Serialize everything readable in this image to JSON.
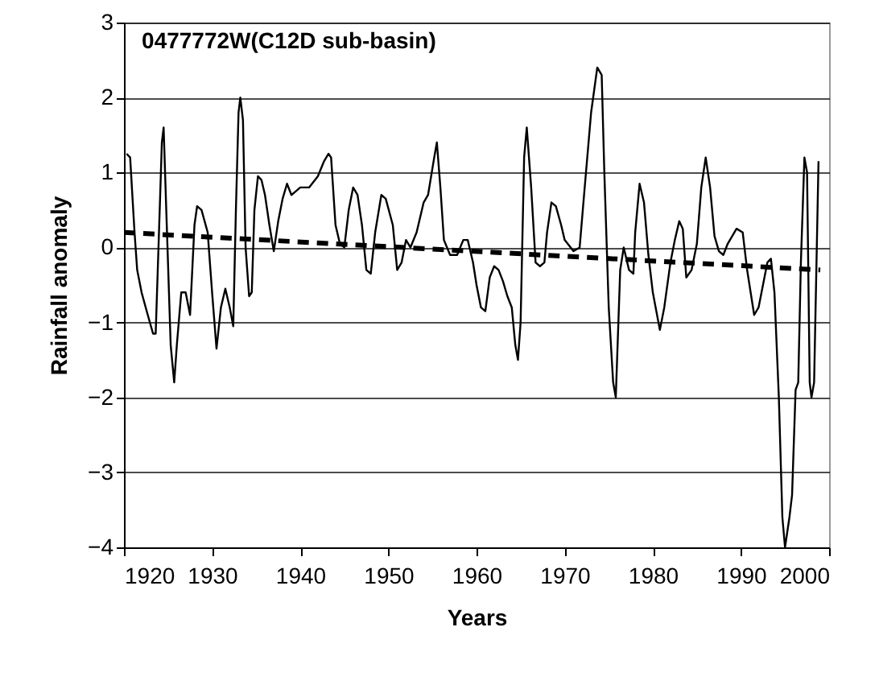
{
  "chart_data": {
    "type": "line",
    "title": "0477772W(C12D sub-basin)",
    "xlabel": "Years",
    "ylabel": "Rainfall anomaly",
    "xlim": [
      1920,
      2000
    ],
    "xticks": [
      1920,
      1930,
      1940,
      1950,
      1960,
      1970,
      1980,
      1990,
      2000
    ],
    "ylim": [
      -4,
      3
    ],
    "yticks": [
      -4,
      -3,
      -2,
      -1,
      0,
      1,
      2,
      3
    ],
    "grid": "y",
    "marker": "none",
    "series": [
      {
        "color": "#000000",
        "line_style": "solid",
        "x": [
          1920.3,
          1920.7,
          1921.2,
          1921.5,
          1922,
          1922.7,
          1923.3,
          1923.6,
          1924,
          1924.3,
          1924.5,
          1924.8,
          1925.3,
          1925.7,
          1926,
          1926.5,
          1927,
          1927.5,
          1928,
          1928.3,
          1928.8,
          1929.5,
          1930,
          1930.5,
          1931,
          1931.5,
          1932,
          1932.4,
          1932.7,
          1933,
          1933.2,
          1933.5,
          1933.8,
          1934.2,
          1934.5,
          1934.8,
          1935.2,
          1935.6,
          1936,
          1936.5,
          1937,
          1937.5,
          1938,
          1938.5,
          1939,
          1939.5,
          1940,
          1941,
          1942,
          1942.7,
          1943.2,
          1943.5,
          1944,
          1944.5,
          1945,
          1945.5,
          1946,
          1946.5,
          1947,
          1947.5,
          1948,
          1948.5,
          1949.2,
          1949.7,
          1950.5,
          1951,
          1951.5,
          1952,
          1952.5,
          1953.2,
          1954,
          1954.5,
          1955.2,
          1955.5,
          1955.9,
          1956.3,
          1957,
          1957.8,
          1958.5,
          1959,
          1959.6,
          1960,
          1960.5,
          1961,
          1961.5,
          1962,
          1962.5,
          1963,
          1963.5,
          1964,
          1964.4,
          1964.7,
          1965,
          1965.4,
          1965.7,
          1966.2,
          1966.7,
          1967.2,
          1967.7,
          1968,
          1968.5,
          1969,
          1969.6,
          1970,
          1971,
          1971.7,
          1972.2,
          1973,
          1973.7,
          1974.2,
          1974.5,
          1975,
          1975.5,
          1975.8,
          1976.3,
          1976.7,
          1977.3,
          1977.8,
          1978,
          1978.5,
          1979,
          1979.5,
          1980,
          1980.8,
          1981.3,
          1982,
          1982.5,
          1983,
          1983.4,
          1983.8,
          1984.4,
          1985,
          1985.5,
          1986,
          1986.5,
          1987,
          1987.5,
          1988,
          1988.5,
          1989.5,
          1990.2,
          1990.7,
          1991.5,
          1992,
          1992.5,
          1993,
          1993.4,
          1993.8,
          1994.3,
          1994.7,
          1995,
          1995.5,
          1995.8,
          1996.2,
          1996.5,
          1996.8,
          1997.2,
          1997.5,
          1997.8,
          1998,
          1998.3,
          1998.8
        ],
        "values": [
          1.25,
          1.2,
          0.2,
          -0.3,
          -0.6,
          -0.9,
          -1.15,
          -1.15,
          0.3,
          1.4,
          1.6,
          0.5,
          -1.3,
          -1.8,
          -1.3,
          -0.6,
          -0.6,
          -0.9,
          0.3,
          0.55,
          0.5,
          0.2,
          -0.6,
          -1.35,
          -0.8,
          -0.55,
          -0.8,
          -1.05,
          0.5,
          1.8,
          2.0,
          1.7,
          0.0,
          -0.65,
          -0.6,
          0.5,
          0.95,
          0.9,
          0.7,
          0.3,
          -0.05,
          0.35,
          0.65,
          0.85,
          0.7,
          0.75,
          0.8,
          0.8,
          0.95,
          1.15,
          1.25,
          1.2,
          0.3,
          0.05,
          0.0,
          0.5,
          0.8,
          0.7,
          0.3,
          -0.3,
          -0.35,
          0.2,
          0.7,
          0.65,
          0.3,
          -0.3,
          -0.2,
          0.1,
          0.0,
          0.2,
          0.6,
          0.7,
          1.2,
          1.4,
          0.8,
          0.1,
          -0.1,
          -0.1,
          0.1,
          0.1,
          -0.2,
          -0.5,
          -0.8,
          -0.85,
          -0.4,
          -0.25,
          -0.3,
          -0.45,
          -0.65,
          -0.8,
          -1.3,
          -1.5,
          -1.0,
          1.2,
          1.6,
          0.8,
          -0.2,
          -0.25,
          -0.2,
          0.2,
          0.6,
          0.55,
          0.3,
          0.1,
          -0.05,
          0.0,
          0.7,
          1.8,
          2.4,
          2.3,
          1.0,
          -0.8,
          -1.8,
          -2.0,
          -0.3,
          0.0,
          -0.3,
          -0.35,
          0.2,
          0.85,
          0.6,
          -0.1,
          -0.6,
          -1.1,
          -0.8,
          -0.2,
          0.1,
          0.35,
          0.25,
          -0.4,
          -0.3,
          0.05,
          0.8,
          1.2,
          0.8,
          0.15,
          -0.05,
          -0.1,
          0.05,
          0.25,
          0.2,
          -0.3,
          -0.9,
          -0.8,
          -0.5,
          -0.2,
          -0.15,
          -0.6,
          -2.0,
          -3.6,
          -4.0,
          -3.6,
          -3.3,
          -1.9,
          -1.8,
          -0.2,
          1.2,
          1.0,
          -1.8,
          -2.0,
          -1.8,
          1.15
        ]
      },
      {
        "color": "#000000",
        "line_style": "dashed",
        "x": [
          1920,
          1999
        ],
        "values": [
          0.2,
          -0.3
        ]
      }
    ]
  }
}
